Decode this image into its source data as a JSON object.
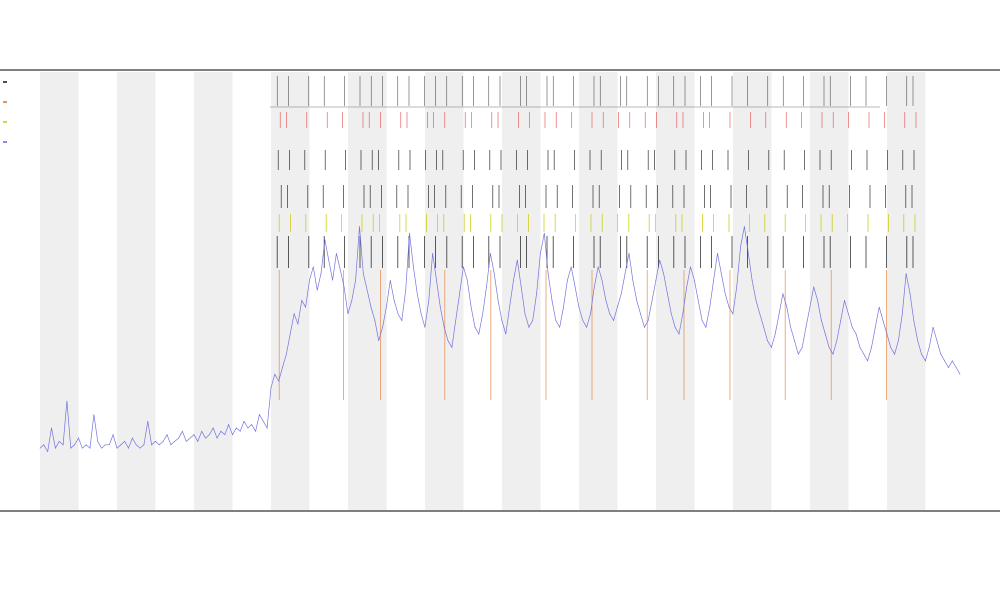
{
  "chart_data": {
    "type": "line",
    "title": "",
    "subtitle_1": "",
    "subtitle_2": "",
    "xlabel": "",
    "ylabel": "",
    "grid": false,
    "legend_position": "top-left",
    "legend": [
      {
        "name": "",
        "color": "#111111"
      },
      {
        "name": "",
        "color": "#e07020"
      },
      {
        "name": "",
        "color": "#c8c800"
      },
      {
        "name": "",
        "color": "#6666dd"
      }
    ],
    "track_labels": [
      "",
      ""
    ],
    "x_tick_labels": [],
    "shaded_band_count": 12,
    "colors": {
      "series": "#6666dd",
      "accent_marker": "#e07020",
      "yellow_marker": "#c8c800",
      "event_marker": "#111111",
      "red_marker": "#e03030",
      "band": "#efefef",
      "axis": "#555555"
    },
    "series": [
      {
        "x": [
          0,
          1,
          2,
          3,
          4,
          5,
          6,
          7,
          8,
          9,
          10,
          11,
          12,
          13,
          14,
          15,
          16,
          17,
          18,
          19,
          20,
          21,
          22,
          23,
          24,
          25,
          26,
          27,
          28,
          29,
          30,
          31,
          32,
          33,
          34,
          35,
          36,
          37,
          38,
          39,
          40,
          41,
          42,
          43,
          44,
          45,
          46,
          47,
          48,
          49,
          50,
          51,
          52,
          53,
          54,
          55,
          56,
          57,
          58,
          59,
          60,
          61,
          62,
          63,
          64,
          65,
          66,
          67,
          68,
          69,
          70,
          71,
          72,
          73,
          74,
          75,
          76,
          77,
          78,
          79,
          80,
          81,
          82,
          83,
          84,
          85,
          86,
          87,
          88,
          89,
          90,
          91,
          92,
          93,
          94,
          95,
          96,
          97,
          98,
          99,
          100,
          101,
          102,
          103,
          104,
          105,
          106,
          107,
          108,
          109,
          110,
          111,
          112,
          113,
          114,
          115,
          116,
          117,
          118,
          119,
          120,
          121,
          122,
          123,
          124,
          125,
          126,
          127,
          128,
          129,
          130,
          131,
          132,
          133,
          134,
          135,
          136,
          137,
          138,
          139,
          140,
          141,
          142,
          143,
          144,
          145,
          146,
          147,
          148,
          149,
          150,
          151,
          152,
          153,
          154,
          155,
          156,
          157,
          158,
          159,
          160,
          161,
          162,
          163,
          164,
          165,
          166,
          167,
          168,
          169,
          170,
          171,
          172,
          173,
          174,
          175,
          176,
          177,
          178,
          179,
          180,
          181,
          182,
          183,
          184,
          185,
          186,
          187,
          188,
          189,
          190,
          191,
          192,
          193,
          194,
          195,
          196,
          197,
          198,
          199,
          200,
          201,
          202,
          203,
          204,
          205,
          206,
          207,
          208,
          209,
          210,
          211,
          212,
          213,
          214,
          215,
          216,
          217,
          218,
          219,
          220,
          221,
          222,
          223,
          224,
          225,
          226,
          227,
          228,
          229,
          230,
          231,
          232,
          233,
          234,
          235,
          236,
          237,
          238,
          239
        ],
        "y": [
          8,
          9,
          7,
          14,
          8,
          10,
          9,
          22,
          8,
          9,
          11,
          8,
          9,
          8,
          18,
          10,
          8,
          9,
          9,
          12,
          8,
          9,
          10,
          8,
          11,
          9,
          8,
          9,
          16,
          9,
          10,
          9,
          10,
          12,
          9,
          10,
          11,
          13,
          10,
          11,
          12,
          10,
          13,
          11,
          12,
          14,
          11,
          13,
          12,
          15,
          12,
          14,
          13,
          16,
          14,
          15,
          13,
          18,
          16,
          14,
          26,
          30,
          28,
          32,
          36,
          42,
          48,
          45,
          52,
          50,
          58,
          62,
          55,
          60,
          70,
          64,
          58,
          66,
          61,
          56,
          48,
          52,
          58,
          74,
          60,
          55,
          50,
          46,
          40,
          44,
          50,
          58,
          52,
          48,
          46,
          55,
          72,
          62,
          54,
          48,
          44,
          52,
          66,
          58,
          50,
          44,
          40,
          38,
          46,
          54,
          62,
          58,
          50,
          44,
          42,
          48,
          56,
          66,
          60,
          52,
          46,
          42,
          50,
          58,
          64,
          56,
          48,
          44,
          46,
          54,
          66,
          72,
          60,
          52,
          46,
          44,
          50,
          58,
          62,
          56,
          50,
          46,
          44,
          48,
          56,
          62,
          58,
          52,
          48,
          46,
          50,
          54,
          60,
          66,
          58,
          52,
          48,
          44,
          46,
          52,
          58,
          64,
          60,
          54,
          48,
          44,
          42,
          48,
          56,
          62,
          58,
          52,
          46,
          44,
          50,
          58,
          66,
          60,
          54,
          50,
          48,
          56,
          68,
          74,
          66,
          58,
          52,
          48,
          44,
          40,
          38,
          42,
          48,
          54,
          50,
          44,
          40,
          36,
          38,
          44,
          50,
          56,
          52,
          46,
          42,
          38,
          36,
          40,
          46,
          52,
          48,
          44,
          42,
          38,
          36,
          34,
          38,
          44,
          50,
          46,
          42,
          38,
          36,
          40,
          48,
          60,
          54,
          46,
          40,
          36,
          34,
          38,
          44,
          40,
          36,
          34,
          32,
          34,
          32,
          30
        ],
        "ylim": [
          0,
          120
        ]
      }
    ],
    "event_positions": [
      0.26,
      0.27,
      0.29,
      0.31,
      0.33,
      0.35,
      0.36,
      0.37,
      0.39,
      0.4,
      0.42,
      0.43,
      0.44,
      0.46,
      0.47,
      0.49,
      0.5,
      0.52,
      0.53,
      0.55,
      0.56,
      0.58,
      0.6,
      0.61,
      0.63,
      0.64,
      0.66,
      0.67,
      0.69,
      0.7,
      0.72,
      0.73,
      0.75,
      0.77,
      0.79,
      0.81,
      0.83,
      0.85,
      0.86,
      0.88,
      0.9,
      0.92,
      0.94,
      0.95
    ],
    "highlight_positions": [
      0.26,
      0.33,
      0.37,
      0.44,
      0.49,
      0.55,
      0.6,
      0.66,
      0.7,
      0.75,
      0.81,
      0.86,
      0.92
    ]
  }
}
